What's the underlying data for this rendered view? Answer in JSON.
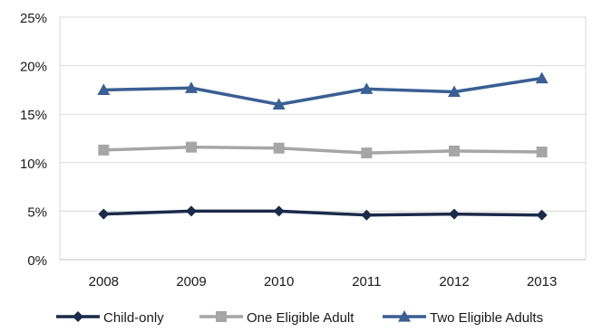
{
  "chart_data": {
    "type": "line",
    "x": [
      "2008",
      "2009",
      "2010",
      "2011",
      "2012",
      "2013"
    ],
    "ylim": [
      0,
      25
    ],
    "yticks": [
      0,
      5,
      10,
      15,
      20,
      25
    ],
    "ytick_labels": [
      "0%",
      "5%",
      "10%",
      "15%",
      "20%",
      "25%"
    ],
    "grid": true,
    "legend_position": "bottom",
    "series": [
      {
        "name": "Child-only",
        "values": [
          4.7,
          5.0,
          5.0,
          4.6,
          4.7,
          4.6
        ],
        "color": "#1b2a4a",
        "marker": "diamond"
      },
      {
        "name": "One Eligible Adult",
        "values": [
          11.3,
          11.6,
          11.5,
          11.0,
          11.2,
          11.1
        ],
        "color": "#a6a6a6",
        "marker": "square"
      },
      {
        "name": "Two Eligible Adults",
        "values": [
          17.5,
          17.7,
          16.0,
          17.6,
          17.3,
          18.7
        ],
        "color": "#3a5f93",
        "marker": "triangle"
      }
    ]
  }
}
